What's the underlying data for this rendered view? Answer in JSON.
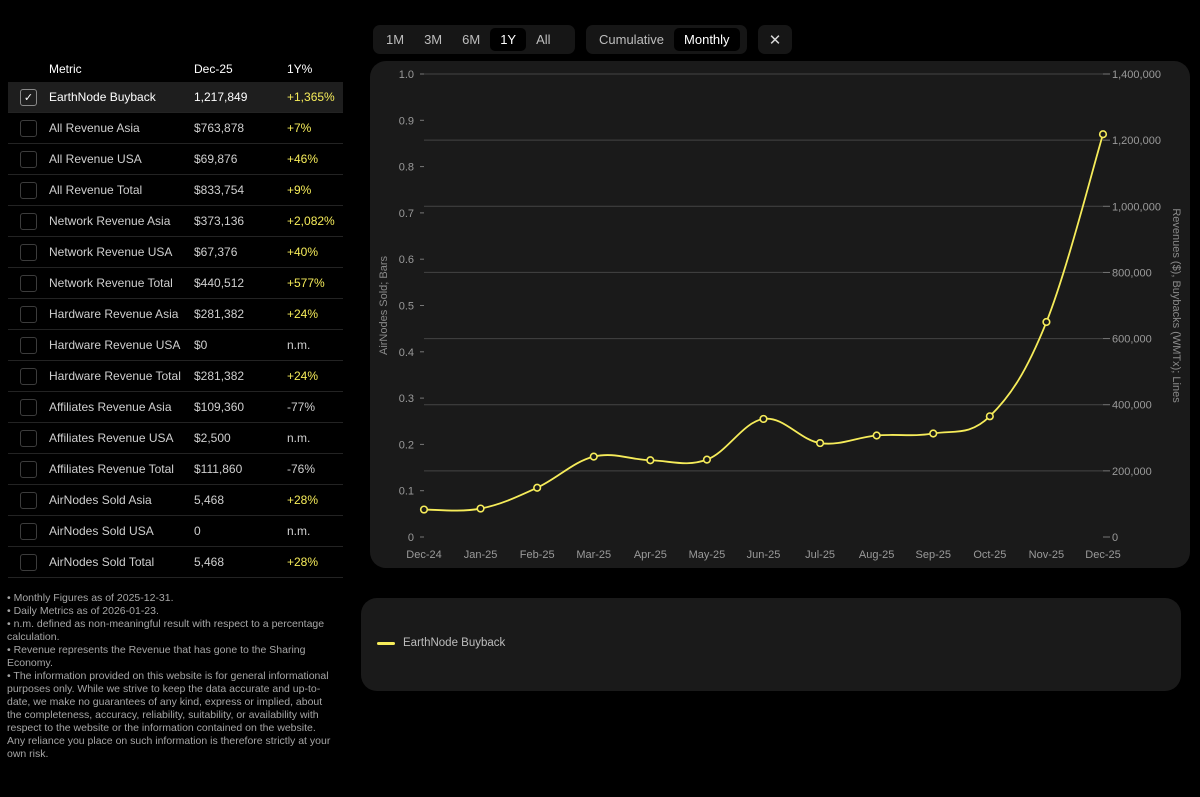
{
  "table": {
    "headers": {
      "metric": "Metric",
      "period": "Dec-25",
      "change": "1Y%"
    },
    "rows": [
      {
        "name": "EarthNode Buyback",
        "value": "1,217,849",
        "change": "+1,365%",
        "trend": "pos",
        "checked": true
      },
      {
        "name": "All Revenue Asia",
        "value": "$763,878",
        "change": "+7%",
        "trend": "pos",
        "checked": false
      },
      {
        "name": "All Revenue USA",
        "value": "$69,876",
        "change": "+46%",
        "trend": "pos",
        "checked": false
      },
      {
        "name": "All Revenue Total",
        "value": "$833,754",
        "change": "+9%",
        "trend": "pos",
        "checked": false
      },
      {
        "name": "Network Revenue Asia",
        "value": "$373,136",
        "change": "+2,082%",
        "trend": "pos",
        "checked": false
      },
      {
        "name": "Network Revenue USA",
        "value": "$67,376",
        "change": "+40%",
        "trend": "pos",
        "checked": false
      },
      {
        "name": "Network Revenue Total",
        "value": "$440,512",
        "change": "+577%",
        "trend": "pos",
        "checked": false
      },
      {
        "name": "Hardware Revenue Asia",
        "value": "$281,382",
        "change": "+24%",
        "trend": "pos",
        "checked": false
      },
      {
        "name": "Hardware Revenue USA",
        "value": "$0",
        "change": "n.m.",
        "trend": "neutral",
        "checked": false
      },
      {
        "name": "Hardware Revenue Total",
        "value": "$281,382",
        "change": "+24%",
        "trend": "pos",
        "checked": false
      },
      {
        "name": "Affiliates Revenue Asia",
        "value": "$109,360",
        "change": "-77%",
        "trend": "neg",
        "checked": false
      },
      {
        "name": "Affiliates Revenue USA",
        "value": "$2,500",
        "change": "n.m.",
        "trend": "neutral",
        "checked": false
      },
      {
        "name": "Affiliates Revenue Total",
        "value": "$111,860",
        "change": "-76%",
        "trend": "neg",
        "checked": false
      },
      {
        "name": "AirNodes Sold Asia",
        "value": "5,468",
        "change": "+28%",
        "trend": "pos",
        "checked": false
      },
      {
        "name": "AirNodes Sold USA",
        "value": "0",
        "change": "n.m.",
        "trend": "neutral",
        "checked": false
      },
      {
        "name": "AirNodes Sold Total",
        "value": "5,468",
        "change": "+28%",
        "trend": "pos",
        "checked": false
      }
    ]
  },
  "notes": [
    "• Monthly Figures as of 2025-12-31.",
    "• Daily Metrics as of 2026-01-23.",
    "• n.m. defined as non-meaningful result with respect to a percentage calculation.",
    "• Revenue represents the Revenue that has gone to the Sharing Economy.",
    "• The information provided on this website is for general informational purposes only. While we strive to keep the data accurate and up-to-date, we make no guarantees of any kind, express or implied, about the completeness, accuracy, reliability, suitability, or availability with respect to the website or the information contained on the website. Any reliance you place on such information is therefore strictly at your own risk."
  ],
  "controls": {
    "ranges": [
      "1M",
      "3M",
      "6M",
      "1Y",
      "All"
    ],
    "active_range": "1Y",
    "modes": [
      "Cumulative",
      "Monthly"
    ],
    "active_mode": "Monthly",
    "close_glyph": "✕"
  },
  "colors": {
    "accent": "#f6ec5a",
    "card": "#1a1a1a",
    "background": "#000000"
  },
  "chart_data": {
    "type": "line",
    "x": [
      "Dec-24",
      "Jan-25",
      "Feb-25",
      "Mar-25",
      "Apr-25",
      "May-25",
      "Jun-25",
      "Jul-25",
      "Aug-25",
      "Sep-25",
      "Oct-25",
      "Nov-25",
      "Dec-25"
    ],
    "series": [
      {
        "name": "EarthNode Buyback",
        "axis": "right",
        "color": "#f6ec5a",
        "values": [
          83000,
          86000,
          149000,
          243000,
          232000,
          234000,
          357000,
          284000,
          307000,
          313000,
          365000,
          650000,
          1217849
        ]
      }
    ],
    "left_axis": {
      "label": "AirNodes Sold; Bars",
      "range": [
        0,
        1.0
      ],
      "ticks": [
        0,
        0.1,
        0.2,
        0.3,
        0.4,
        0.5,
        0.6,
        0.7,
        0.8,
        0.9,
        1.0
      ],
      "tick_labels": [
        "0",
        "0.1",
        "0.2",
        "0.3",
        "0.4",
        "0.5",
        "0.6",
        "0.7",
        "0.8",
        "0.9",
        "1.0"
      ]
    },
    "right_axis": {
      "label": "Revenues ($), Buybacks (WMTx); Lines",
      "range": [
        0,
        1400000
      ],
      "ticks": [
        0,
        200000,
        400000,
        600000,
        800000,
        1000000,
        1200000,
        1400000
      ],
      "tick_labels": [
        "0",
        "200,000",
        "400,000",
        "600,000",
        "800,000",
        "1,000,000",
        "1,200,000",
        "1,400,000"
      ]
    },
    "grid": "horizontal",
    "legend": {
      "position": "below",
      "entries": [
        "EarthNode Buyback"
      ]
    }
  }
}
